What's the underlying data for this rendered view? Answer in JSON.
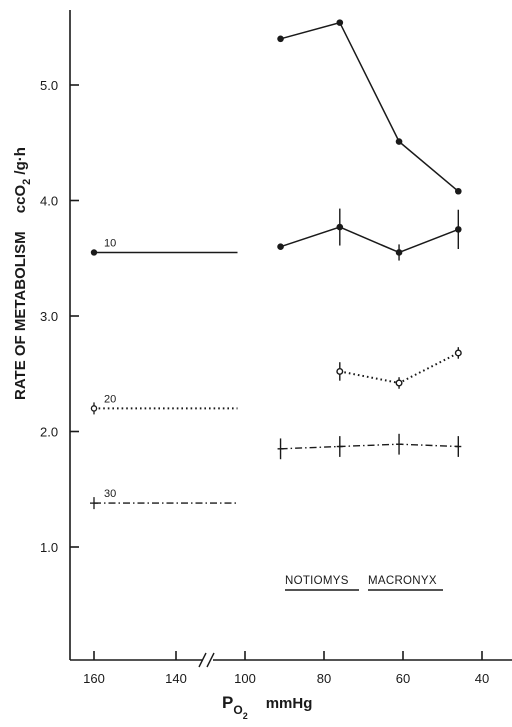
{
  "chart_data": {
    "type": "line",
    "ylabel": "RATE OF METABOLISM",
    "ylabel_unit": {
      "main": "ccO",
      "sub": "2",
      "rest": " /g·h"
    },
    "xlabel": {
      "main": "P",
      "sub": "O",
      "subsub": "2",
      "rest": "mmHg"
    },
    "ylim": [
      0.3,
      5.8
    ],
    "y_ticks": [
      1.0,
      2.0,
      3.0,
      4.0,
      5.0
    ],
    "y_tick_labels": [
      "1.0",
      "2.0",
      "3.0",
      "4.0",
      "5.0"
    ],
    "x_ticks": [
      160,
      140,
      100,
      80,
      60,
      40
    ],
    "x_tick_labels": [
      "160",
      "140",
      "100",
      "80",
      "60",
      "40"
    ],
    "x_axis_break": "between 140 and 100",
    "grid": false,
    "legend": "none",
    "species_labels": [
      "NOTIOMYS",
      "MACRONYX"
    ],
    "series": [
      {
        "name": "",
        "style": "solid",
        "marker": "filled-circle",
        "points": [
          {
            "x": 91,
            "y": 5.4
          },
          {
            "x": 76,
            "y": 5.54
          },
          {
            "x": 61,
            "y": 4.51
          },
          {
            "x": 46,
            "y": 4.08
          }
        ],
        "error": [
          0,
          0,
          0,
          0
        ]
      },
      {
        "name": "10",
        "style": "solid",
        "marker": "filled-circle",
        "reference_line": {
          "x_from": 160,
          "x_to": 125,
          "y": 3.55
        },
        "points": [
          {
            "x": 91,
            "y": 3.6
          },
          {
            "x": 76,
            "y": 3.77
          },
          {
            "x": 61,
            "y": 3.55
          },
          {
            "x": 46,
            "y": 3.75
          }
        ],
        "error": [
          0,
          0.16,
          0.07,
          0.17
        ]
      },
      {
        "name": "20",
        "style": "dotted",
        "marker": "open-circle",
        "reference_line": {
          "x_from": 160,
          "x_to": 125,
          "y": 2.2
        },
        "points": [
          {
            "x": 76,
            "y": 2.52
          },
          {
            "x": 61,
            "y": 2.42
          },
          {
            "x": 46,
            "y": 2.68
          }
        ],
        "error": [
          0.08,
          0.05,
          0.05
        ]
      },
      {
        "name": "30",
        "style": "dash-dot",
        "marker": "tick",
        "reference_line": {
          "x_from": 160,
          "x_to": 125,
          "y": 1.38
        },
        "points": [
          {
            "x": 91,
            "y": 1.85
          },
          {
            "x": 76,
            "y": 1.87
          },
          {
            "x": 61,
            "y": 1.89
          },
          {
            "x": 46,
            "y": 1.87
          }
        ],
        "error": [
          0.09,
          0.09,
          0.09,
          0.09
        ]
      }
    ]
  }
}
